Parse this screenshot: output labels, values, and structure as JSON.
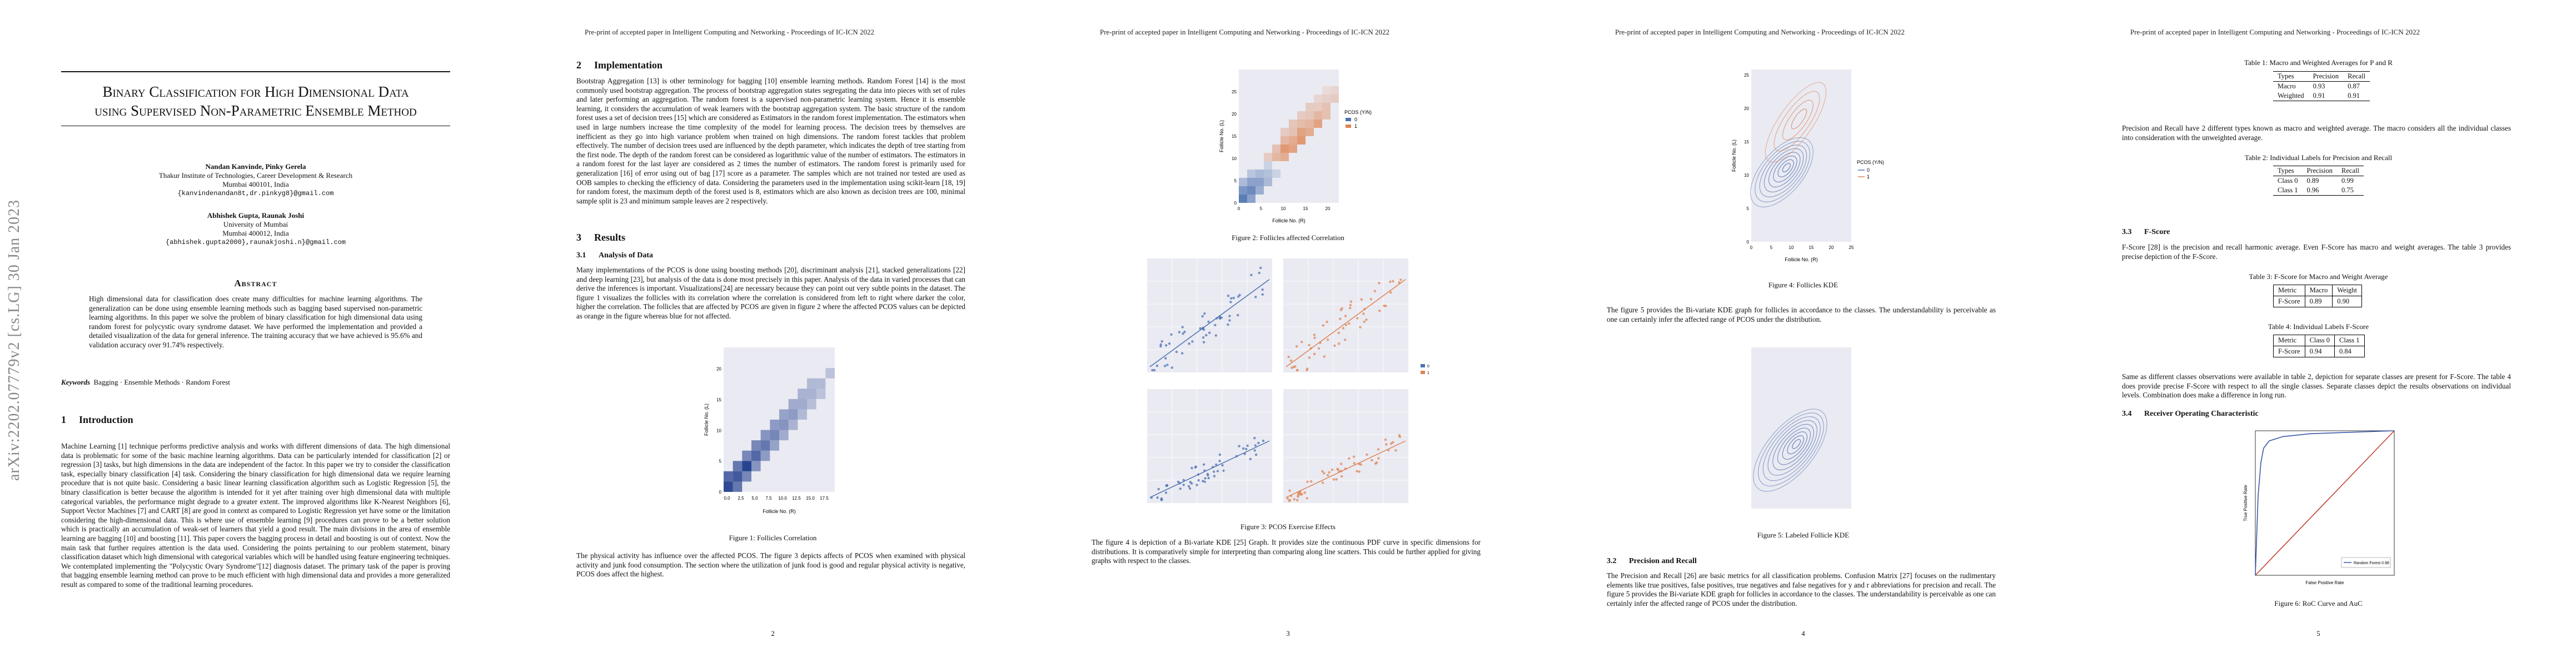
{
  "running_header": "Pre-print of accepted paper in Intelligent Computing and Networking - Proceedings of IC-ICN 2022",
  "arxiv_stamp": "arXiv:2202.07779v2  [cs.LG]  30 Jan 2023",
  "page_numbers": [
    "2",
    "3",
    "4",
    "5"
  ],
  "page1": {
    "title_line1": "Binary Classification for High Dimensional Data",
    "title_line2": "using Supervised Non-Parametric Ensemble Method",
    "author1_names": "Nandan Kanvinde, Pinky Gerela",
    "author1_affil": "Thakur Institute of Technologies, Career Development & Research",
    "author1_city": "Mumbai 400101, India",
    "author1_email": "{kanvindenandan8t,dr.pinkyg8}@gmail.com",
    "author2_names": "Abhishek Gupta, Raunak Joshi",
    "author2_affil": "University of Mumbai",
    "author2_city": "Mumbai 400012, India",
    "author2_email": "{abhishek.gupta2000},raunakjoshi.n}@gmail.com",
    "abstract_heading": "Abstract",
    "abstract_text": "High dimensional data for classification does create many difficulties for machine learning algorithms. The generalization can be done using ensemble learning methods such as bagging based supervised non-parametric learning algorithms. In this paper we solve the problem of binary classification for high dimensional data using random forest for polycystic ovary syndrome dataset. We have performed the implementation and provided a detailed visualization of the data for general inference. The training accuracy that we have achieved is 95.6% and validation accuracy over 91.74% respectively.",
    "keywords_label": "Keywords",
    "keywords": "Bagging · Ensemble Methods · Random Forest",
    "intro_num": "1",
    "intro_heading": "Introduction",
    "intro_text": "Machine Learning [1] technique performs predictive analysis and works with different dimensions of data. The high dimensional data is problematic for some of the basic machine learning algorithms. Data can be particularly intended for classification [2] or regression [3] tasks, but high dimensions in the data are independent of the factor. In this paper we try to consider the classification task, especially binary classification [4] task. Considering the binary classification for high dimensional data we require learning procedure that is not quite basic. Considering a basic linear learning classification algorithm such as Logistic Regression [5], the binary classification is better because the algorithm is intended for it yet after training over high dimensional data with multiple categorical variables, the performance might degrade to a greater extent. The improved algorithms like K-Nearest Neighbors [6], Support Vector Machines [7] and CART [8] are good in context as compared to Logistic Regression yet have some or the limitation considering the high-dimensional data. This is where use of ensemble learning [9] procedures can prove to be a better solution which is practically an accumulation of weak-set of learners that yield a good result. The main divisions in the area of ensemble learning are bagging [10] and boosting [11]. This paper covers the bagging process in detail and boosting is out of context. Now the main task that further requires attention is the data used. Considering the points pertaining to our problem statement, binary classification dataset which high dimensional with categorical variables which will be handled using feature engineering techniques. We contemplated implementing the \"Polycystic Ovary Syndrome\"[12] diagnosis dataset. The primary task of the paper is proving that bagging ensemble learning method can prove to be much efficient with high dimensional data and provides a more generalized result as compared to some of the traditional learning procedures."
  },
  "page2": {
    "impl_num": "2",
    "impl_heading": "Implementation",
    "impl_text": "Bootstrap Aggregation [13] is other terminology for bagging [10] ensemble learning methods. Random Forest [14] is the most commonly used bootstrap aggregation. The process of bootstrap aggregation states segregating the data into pieces with set of rules and later performing an aggregation. The random forest is a supervised non-parametric learning system. Hence it is ensemble learning, it considers the accumulation of weak learners with the bootstrap aggregation system. The basic structure of the random forest uses a set of decision trees [15] which are considered as Estimators in the random forest implementation. The estimators when used in large numbers increase the time complexity of the model for learning process. The decision trees by themselves are inefficient as they go into high variance problem when trained on high dimensions. The random forest tackles that problem effectively. The number of decision trees used are influenced by the depth parameter, which indicates the depth of tree starting from the first node. The depth of the random forest can be considered as logarithmic value of the number of estimators. The estimators in a random forest for the last layer are considered as 2 times the number of estimators. The random forest is primarily used for generalization [16] of error using out of bag [17] score as a parameter. The samples which are not trained nor tested are used as OOB samples to checking the efficiency of data. Considering the parameters used in the implementation using scikit-learn [18, 19] for random forest, the maximum depth of the forest used is 8, estimators which are also known as decision trees are 100, minimal sample split is 23 and minimum sample leaves are 2 respectively.",
    "results_num": "3",
    "results_heading": "Results",
    "sub31_num": "3.1",
    "sub31_heading": "Analysis of Data",
    "sub31_text": "Many implementations of the PCOS is done using boosting methods [20], discriminant analysis [21], stacked generalizations [22] and deep learning [23], but analysis of the data is done most precisely in this paper. Analysis of the data in varied processes that can derive the inferences is important. Visualizations[24] are necessary because they can point out very subtle points in the dataset. The figure 1 visualizes the follicles with its correlation where the correlation is considered from left to right where darker the color, higher the correlation. The follicles that are affected by PCOS are given in figure 2 where the affected PCOS values can be depicted as orange in the figure whereas blue for not affected.",
    "fig1_caption": "Figure 1: Follicles Correlation",
    "after_fig1_text": "The physical activity has influence over the affected PCOS. The figure 3 depicts affects of PCOS when examined with physical activity and junk food consumption. The section where the utilization of junk food is good and regular physical activity is negative, PCOS does affect the highest."
  },
  "page3": {
    "fig2_caption": "Figure 2: Follicles affected Correlation",
    "fig3_caption": "Figure 3: PCOS Exercise Effects",
    "after_fig3_text": "The figure 4 is depiction of a Bi-variate KDE [25] Graph. It provides size the continuous PDF curve in specific dimensions for distributions. It is comparatively simple for interpreting than comparing along line scatters. This could be further applied for giving graphs with respect to the classes."
  },
  "page4": {
    "fig4_caption": "Figure 4: Follicles KDE",
    "after_fig4_text": "The figure 5 provides the Bi-variate KDE graph for follicles in accordance to the classes. The understandability is perceivable as one can certainly infer the affected range of PCOS under the distribution.",
    "fig5_caption": "Figure 5: Labeled Follicle KDE",
    "sub32_num": "3.2",
    "sub32_heading": "Precision and Recall",
    "sub32_text": "The Precision and Recall [26] are basic metrics for all classification problems. Confusion Matrix [27] focuses on the rudimentary elements like true positives, false positives, true negatives and false negatives for y and r abbreviations for precision and recall. The figure 5 provides the Bi-variate KDE graph for follicles in accordance to the classes. The understandability is perceivable as one can certainly infer the affected range of PCOS under the distribution."
  },
  "page5": {
    "table1_caption": "Table 1: Macro and Weighted Averages for P and R",
    "table1": {
      "headers": [
        "Types",
        "Precision",
        "Recall"
      ],
      "rows": [
        [
          "Macro",
          "0.93",
          "0.87"
        ],
        [
          "Weighted",
          "0.91",
          "0.91"
        ]
      ]
    },
    "pr_text": "Precision and Recall have 2 different types known as macro and weighted average. The macro considers all the individual classes into consideration with the unweighted average.",
    "table2_caption": "Table 2: Individual Labels for Precision and Recall",
    "table2": {
      "headers": [
        "Types",
        "Precision",
        "Recall"
      ],
      "rows": [
        [
          "Class 0",
          "0.89",
          "0.99"
        ],
        [
          "Class 1",
          "0.96",
          "0.75"
        ]
      ]
    },
    "sub33_num": "3.3",
    "sub33_heading": "F-Score",
    "sub33_text": "F-Score [28] is the precision and recall harmonic average. Even F-Score has macro and weight averages. The table 3 provides precise depiction of the F-Score.",
    "table3_caption": "Table 3: F-Score for Macro and Weight Average",
    "table3": {
      "headers": [
        "Metric",
        "Macro",
        "Weight"
      ],
      "rows": [
        [
          "F-Score",
          "0.89",
          "0.90"
        ]
      ]
    },
    "table4_caption": "Table 4: Individual Labels F-Score",
    "table4": {
      "headers": [
        "Metric",
        "Class 0",
        "Class 1"
      ],
      "rows": [
        [
          "F-Score",
          "0.94",
          "0.84"
        ]
      ]
    },
    "fscore_text": "Same as different classes observations were available in table 2, depiction for separate classes are present for F-Score. The table 4 does provide precise F-Score with respect to all the single classes. Separate classes depict the results observations on individual levels. Combination does make a difference in long run.",
    "sub34_num": "3.4",
    "sub34_heading": "Receiver Operating Characteristic",
    "fig6_caption": "Figure 6: RoC Curve and AuC"
  },
  "chart_data": [
    {
      "type": "heatmap",
      "title": "Figure 1: Follicles Correlation",
      "xlabel": "Follicle No. (R)",
      "ylabel": "Follicle No. (L)",
      "x_ticks": [
        "0.0",
        "2.5",
        "5.0",
        "7.5",
        "10.0",
        "12.5",
        "15.0",
        "17.5"
      ],
      "y_ticks": [
        "0",
        "5",
        "10",
        "15",
        "20"
      ],
      "xlim": [
        0,
        20
      ],
      "ylim": [
        0,
        23
      ],
      "cells": [
        {
          "x": 0,
          "y": 0,
          "v": 0.9
        },
        {
          "x": 1,
          "y": 0,
          "v": 0.6
        },
        {
          "x": 0,
          "y": 1,
          "v": 0.7
        },
        {
          "x": 1,
          "y": 1,
          "v": 0.8
        },
        {
          "x": 2,
          "y": 1,
          "v": 0.5
        },
        {
          "x": 1,
          "y": 2,
          "v": 0.6
        },
        {
          "x": 2,
          "y": 2,
          "v": 0.95
        },
        {
          "x": 3,
          "y": 2,
          "v": 0.4
        },
        {
          "x": 2,
          "y": 3,
          "v": 0.5
        },
        {
          "x": 3,
          "y": 3,
          "v": 0.7
        },
        {
          "x": 4,
          "y": 3,
          "v": 0.35
        },
        {
          "x": 3,
          "y": 4,
          "v": 0.5
        },
        {
          "x": 4,
          "y": 4,
          "v": 0.6
        },
        {
          "x": 5,
          "y": 4,
          "v": 0.3
        },
        {
          "x": 4,
          "y": 5,
          "v": 0.4
        },
        {
          "x": 5,
          "y": 5,
          "v": 0.5
        },
        {
          "x": 6,
          "y": 5,
          "v": 0.25
        },
        {
          "x": 5,
          "y": 6,
          "v": 0.35
        },
        {
          "x": 6,
          "y": 6,
          "v": 0.4
        },
        {
          "x": 7,
          "y": 6,
          "v": 0.2
        },
        {
          "x": 6,
          "y": 7,
          "v": 0.3
        },
        {
          "x": 7,
          "y": 7,
          "v": 0.35
        },
        {
          "x": 8,
          "y": 7,
          "v": 0.15
        },
        {
          "x": 7,
          "y": 8,
          "v": 0.25
        },
        {
          "x": 8,
          "y": 8,
          "v": 0.25
        },
        {
          "x": 9,
          "y": 8,
          "v": 0.12
        },
        {
          "x": 8,
          "y": 9,
          "v": 0.2
        },
        {
          "x": 9,
          "y": 9,
          "v": 0.2
        },
        {
          "x": 10,
          "y": 9,
          "v": 0.1
        },
        {
          "x": 9,
          "y": 10,
          "v": 0.15
        },
        {
          "x": 10,
          "y": 10,
          "v": 0.15
        },
        {
          "x": 11,
          "y": 11,
          "v": 0.1
        }
      ]
    },
    {
      "type": "heatmap",
      "title": "Figure 2: Follicles affected Correlation",
      "xlabel": "Follicle No. (R)",
      "ylabel": "Follicle No. (L)",
      "legend_title": "PCOS (Y/N)",
      "legend": [
        "0",
        "1"
      ],
      "x_ticks": [
        "0",
        "5",
        "10",
        "15",
        "20"
      ],
      "y_ticks": [
        "0",
        "5",
        "10",
        "15",
        "20",
        "25"
      ],
      "colors": {
        "0": "#4c72b0",
        "1": "#dd8452"
      }
    },
    {
      "type": "scatter",
      "title": "Figure 3: PCOS Exercise Effects",
      "panels": 4,
      "colors": {
        "0": "#4c72b0",
        "1": "#dd8452"
      }
    },
    {
      "type": "line",
      "title": "Figure 4: Follicles KDE",
      "xlabel": "Follicle No. (R)",
      "ylabel": "Follicle No. (L)",
      "legend_title": "PCOS (Y/N)",
      "legend": [
        "0",
        "1"
      ],
      "x_ticks": [
        "0",
        "5",
        "10",
        "15",
        "20",
        "25"
      ],
      "y_ticks": [
        "0",
        "5",
        "10",
        "15",
        "20",
        "25"
      ]
    },
    {
      "type": "line",
      "title": "Figure 5: Labeled Follicle KDE"
    },
    {
      "type": "line",
      "title": "Figure 6: RoC Curve and AuC",
      "xlabel": "False Positive Rate",
      "ylabel": "True Positive Rate",
      "legend": [
        "Random Forest 0.98"
      ],
      "series": [
        {
          "name": "Random Forest 0.98",
          "x": [
            0,
            0.02,
            0.04,
            0.06,
            0.1,
            0.2,
            0.4,
            0.7,
            1.0
          ],
          "y": [
            0,
            0.55,
            0.78,
            0.88,
            0.93,
            0.96,
            0.98,
            0.99,
            1.0
          ]
        }
      ]
    }
  ]
}
